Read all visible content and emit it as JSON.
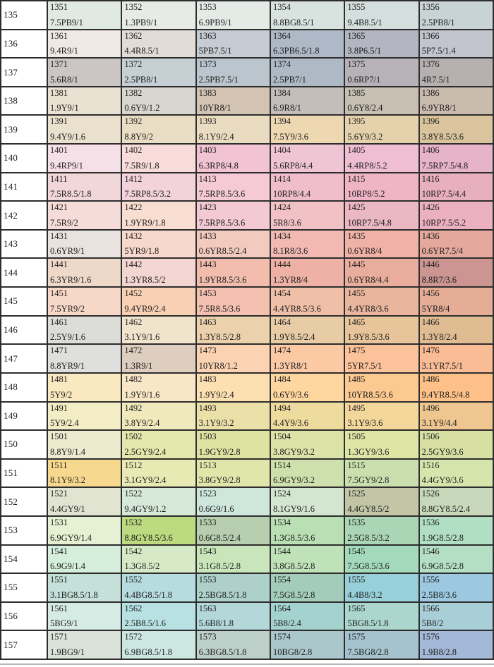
{
  "chart_data": {
    "type": "table",
    "title": "Munsell color chip chart, rows 135-157, chip codes with Munsell notations",
    "columns": [
      "row_label",
      "chip_1",
      "chip_2",
      "chip_3",
      "chip_4",
      "chip_5",
      "chip_6"
    ],
    "rows": [
      {
        "label": "135",
        "cells": [
          {
            "code": "1351",
            "notation": "7.5PB9/1",
            "color": "#e1e9e3"
          },
          {
            "code": "1352",
            "notation": "1.3PB9/1",
            "color": "#e6ece5"
          },
          {
            "code": "1353",
            "notation": "6.9PB9/1",
            "color": "#e4ebe7"
          },
          {
            "code": "1354",
            "notation": "8.8BG8.5/1",
            "color": "#d8e2df"
          },
          {
            "code": "1355",
            "notation": "9.4B8.5/1",
            "color": "#d4dedd"
          },
          {
            "code": "1356",
            "notation": "2.5PB8/1",
            "color": "#c8d3d6"
          }
        ]
      },
      {
        "label": "136",
        "cells": [
          {
            "code": "1361",
            "notation": "9.4R9/1",
            "color": "#efe9e5"
          },
          {
            "code": "1362",
            "notation": "4.4R8.5/1",
            "color": "#e2dcd7"
          },
          {
            "code": "1363",
            "notation": "5PB7.5/1",
            "color": "#c6ccd3"
          },
          {
            "code": "1364",
            "notation": "6.3PB6.5/1.8",
            "color": "#aeb9c7"
          },
          {
            "code": "1365",
            "notation": "3.8P6.5/1",
            "color": "#b3b5c0"
          },
          {
            "code": "1366",
            "notation": "5P7.5/1.4",
            "color": "#c3c5ce"
          }
        ]
      },
      {
        "label": "137",
        "cells": [
          {
            "code": "1371",
            "notation": "5.6R8/1",
            "color": "#cbc6c3"
          },
          {
            "code": "1372",
            "notation": "2.5PB8/1",
            "color": "#c6cfd4"
          },
          {
            "code": "1373",
            "notation": "2.5PB7.5/1",
            "color": "#bac5cd"
          },
          {
            "code": "1374",
            "notation": "2.5PB7/1",
            "color": "#adbac6"
          },
          {
            "code": "1375",
            "notation": "0.6RP7/1",
            "color": "#b6b2b8"
          },
          {
            "code": "1376",
            "notation": "4R7.5/1",
            "color": "#b7b0b0"
          }
        ]
      },
      {
        "label": "138",
        "cells": [
          {
            "code": "1381",
            "notation": "1.9Y9/1",
            "color": "#e9e1d1"
          },
          {
            "code": "1382",
            "notation": "0.6Y9/1.2",
            "color": "#d9d6cf"
          },
          {
            "code": "1383",
            "notation": "10YR8/1",
            "color": "#d2c3b3"
          },
          {
            "code": "1384",
            "notation": "6.9R8/1",
            "color": "#c4bebb"
          },
          {
            "code": "1385",
            "notation": "0.6Y8/2.4",
            "color": "#c7bfb1"
          },
          {
            "code": "1386",
            "notation": "6.9YR8/1",
            "color": "#cabbaf"
          }
        ]
      },
      {
        "label": "139",
        "cells": [
          {
            "code": "1391",
            "notation": "9.4Y9/1.6",
            "color": "#e9e0cd"
          },
          {
            "code": "1392",
            "notation": "8.8Y9/2",
            "color": "#e9ddc4"
          },
          {
            "code": "1393",
            "notation": "8.1Y9/2.4",
            "color": "#eadcc0"
          },
          {
            "code": "1394",
            "notation": "7.5Y9/3.6",
            "color": "#edd8b1"
          },
          {
            "code": "1395",
            "notation": "5.6Y9/3.2",
            "color": "#e5d2ad"
          },
          {
            "code": "1396",
            "notation": "3.8Y8.5/3.6",
            "color": "#d9c49d"
          }
        ]
      },
      {
        "label": "140",
        "cells": [
          {
            "code": "1401",
            "notation": "9.4RP9/1",
            "color": "#f6e0e7"
          },
          {
            "code": "1402",
            "notation": "7.5R9/1.8",
            "color": "#f8dcd9"
          },
          {
            "code": "1403",
            "notation": "6.3RP8/4.8",
            "color": "#f2c3d3"
          },
          {
            "code": "1404",
            "notation": "5.6RP8/4.4",
            "color": "#f0c5d3"
          },
          {
            "code": "1405",
            "notation": "4.4RP8/5.2",
            "color": "#efbed3"
          },
          {
            "code": "1406",
            "notation": "7.5RP7.5/4.8",
            "color": "#e7b3c8"
          }
        ]
      },
      {
        "label": "141",
        "cells": [
          {
            "code": "1411",
            "notation": "7.5R8.5/1.8",
            "color": "#f1d6da"
          },
          {
            "code": "1412",
            "notation": "7.5RP8.5/3.2",
            "color": "#f2d3db"
          },
          {
            "code": "1413",
            "notation": "7.5RP8.5/3.6",
            "color": "#f5c9d5"
          },
          {
            "code": "1414",
            "notation": "10RP8/4.4",
            "color": "#f0bdca"
          },
          {
            "code": "1415",
            "notation": "10RP8/5.2",
            "color": "#efb5c7"
          },
          {
            "code": "1416",
            "notation": "10RP7.5/4.4",
            "color": "#e8afbf"
          }
        ]
      },
      {
        "label": "142",
        "cells": [
          {
            "code": "1421",
            "notation": "7.5R9/2",
            "color": "#f6dcd9"
          },
          {
            "code": "1422",
            "notation": "1.9YR9/1.8",
            "color": "#f8ddd1"
          },
          {
            "code": "1423",
            "notation": "7.5RP8.5/3.6",
            "color": "#f3c9d3"
          },
          {
            "code": "1424",
            "notation": "5R8/3.6",
            "color": "#f1c1c5"
          },
          {
            "code": "1425",
            "notation": "10RP7.5/4.8",
            "color": "#eab7c3"
          },
          {
            "code": "1426",
            "notation": "10RP7.5/5.2",
            "color": "#ecb1c1"
          }
        ]
      },
      {
        "label": "143",
        "cells": [
          {
            "code": "1431",
            "notation": "0.6YR9/1",
            "color": "#eae2de"
          },
          {
            "code": "1432",
            "notation": "5YR9/1.8",
            "color": "#f8d8cc"
          },
          {
            "code": "1433",
            "notation": "0.6YR8.5/2.4",
            "color": "#f2cabe"
          },
          {
            "code": "1434",
            "notation": "8.1R8/3.6",
            "color": "#f2b9b3"
          },
          {
            "code": "1435",
            "notation": "0.6YR8/4",
            "color": "#f0b2a6"
          },
          {
            "code": "1436",
            "notation": "0.6YR7.5/4",
            "color": "#e4a89c"
          }
        ]
      },
      {
        "label": "144",
        "cells": [
          {
            "code": "1441",
            "notation": "6.3YR9/1.6",
            "color": "#eed9c9"
          },
          {
            "code": "1442",
            "notation": "1.3YR8.5/2",
            "color": "#f3d5d1"
          },
          {
            "code": "1443",
            "notation": "1.9YR8.5/3.6",
            "color": "#f2bdad"
          },
          {
            "code": "1444",
            "notation": "1.3YR8/4",
            "color": "#eeb1a5"
          },
          {
            "code": "1445",
            "notation": "0.6YR8/4.4",
            "color": "#e9ad9d"
          },
          {
            "code": "1446",
            "notation": "8.8R7/3.6",
            "color": "#cc9591"
          }
        ]
      },
      {
        "label": "145",
        "cells": [
          {
            "code": "1451",
            "notation": "7.5YR9/2",
            "color": "#f7d7c7"
          },
          {
            "code": "1452",
            "notation": "9.4YR9/2.4",
            "color": "#f8d1b5"
          },
          {
            "code": "1453",
            "notation": "7.5R8.5/3.6",
            "color": "#f4c1b1"
          },
          {
            "code": "1454",
            "notation": "4.4YR8.5/3.6",
            "color": "#f0bfa7"
          },
          {
            "code": "1455",
            "notation": "4.4YR8/3.6",
            "color": "#e9b59d"
          },
          {
            "code": "1456",
            "notation": "5YR8/4",
            "color": "#e5ad95"
          }
        ]
      },
      {
        "label": "146",
        "cells": [
          {
            "code": "1461",
            "notation": "2.5Y9/1.6",
            "color": "#dcdcd8"
          },
          {
            "code": "1462",
            "notation": "3.1Y9/1.6",
            "color": "#f0e4cc"
          },
          {
            "code": "1463",
            "notation": "1.3Y8.5/2.8",
            "color": "#ecd2ac"
          },
          {
            "code": "1464",
            "notation": "1.9Y8.5/2.4",
            "color": "#e8cca6"
          },
          {
            "code": "1465",
            "notation": "1.9Y8.5/3.6",
            "color": "#e8c49a"
          },
          {
            "code": "1466",
            "notation": "1.3Y8/2.4",
            "color": "#dfbc92"
          }
        ]
      },
      {
        "label": "147",
        "cells": [
          {
            "code": "1471",
            "notation": "8.8YR9/1",
            "color": "#dfdfdd"
          },
          {
            "code": "1472",
            "notation": "1.3R9/1",
            "color": "#ddcebf"
          },
          {
            "code": "1473",
            "notation": "10YR8/1.2",
            "color": "#fbd3b3"
          },
          {
            "code": "1474",
            "notation": "1.3YR8/1",
            "color": "#fcc9a5"
          },
          {
            "code": "1475",
            "notation": "5YR7.5/1",
            "color": "#fcc39b"
          },
          {
            "code": "1476",
            "notation": "3.1YR7.5/1",
            "color": "#f9bc95"
          }
        ]
      },
      {
        "label": "148",
        "cells": [
          {
            "code": "1481",
            "notation": "5Y9/2",
            "color": "#fae8c0"
          },
          {
            "code": "1482",
            "notation": "1.9Y9/1.6",
            "color": "#f8e6c6"
          },
          {
            "code": "1483",
            "notation": "1.9Y9/2.4",
            "color": "#fce0b2"
          },
          {
            "code": "1484",
            "notation": "0.6Y9/3.6",
            "color": "#fdd6a0"
          },
          {
            "code": "1485",
            "notation": "10YR8.5/3.6",
            "color": "#fcca90"
          },
          {
            "code": "1486",
            "notation": "9.4YR8.5/4.8",
            "color": "#fcc088"
          }
        ]
      },
      {
        "label": "149",
        "cells": [
          {
            "code": "1491",
            "notation": "5Y9/2.4",
            "color": "#f3edc6"
          },
          {
            "code": "1492",
            "notation": "3.8Y9/2.4",
            "color": "#efe9bb"
          },
          {
            "code": "1493",
            "notation": "3.1Y9/3.2",
            "color": "#ebe0a8"
          },
          {
            "code": "1494",
            "notation": "4.4Y9/3.6",
            "color": "#eedb9e"
          },
          {
            "code": "1495",
            "notation": "3.1Y9/3.6",
            "color": "#f2d69a"
          },
          {
            "code": "1496",
            "notation": "3.1Y9/4.4",
            "color": "#efc68f"
          }
        ]
      },
      {
        "label": "150",
        "cells": [
          {
            "code": "1501",
            "notation": "8.8Y9/1.4",
            "color": "#eeead0"
          },
          {
            "code": "1502",
            "notation": "2.5GY9/2.4",
            "color": "#e5e7ac"
          },
          {
            "code": "1503",
            "notation": "1.9GY9/2.8",
            "color": "#dfe3a2"
          },
          {
            "code": "1504",
            "notation": "3.8GY9/3.2",
            "color": "#dce3a6"
          },
          {
            "code": "1505",
            "notation": "1.3GY9/3.6",
            "color": "#dee6a6"
          },
          {
            "code": "1506",
            "notation": "2.5GY9/3.6",
            "color": "#d7e0a2"
          }
        ]
      },
      {
        "label": "151",
        "cells": [
          {
            "code": "1511",
            "notation": "8.1Y9/3.2",
            "color": "#f6d98e"
          },
          {
            "code": "1512",
            "notation": "3.1GY9/2.4",
            "color": "#e9e9b4"
          },
          {
            "code": "1513",
            "notation": "3.8GY9/2.8",
            "color": "#e0e5aa"
          },
          {
            "code": "1514",
            "notation": "6.9GY9/3.2",
            "color": "#cee1ac"
          },
          {
            "code": "1515",
            "notation": "7.5GY9/2.8",
            "color": "#cadfae"
          },
          {
            "code": "1516",
            "notation": "4.4GY9/3.6",
            "color": "#d6e5ac"
          }
        ]
      },
      {
        "label": "152",
        "cells": [
          {
            "code": "1521",
            "notation": "4.4GY9/1",
            "color": "#e0e4d0"
          },
          {
            "code": "1522",
            "notation": "9.4GY9/1.2",
            "color": "#d6e8d8"
          },
          {
            "code": "1523",
            "notation": "0.6G9/1.6",
            "color": "#cee6dc"
          },
          {
            "code": "1524",
            "notation": "8.1GY9/1.6",
            "color": "#d2e6d0"
          },
          {
            "code": "1525",
            "notation": "4.4GY8.5/2",
            "color": "#c2c6a6"
          },
          {
            "code": "1526",
            "notation": "8.8GY8.5/2.4",
            "color": "#c8d8ba"
          }
        ]
      },
      {
        "label": "153",
        "cells": [
          {
            "code": "1531",
            "notation": "6.9GY9/1.4",
            "color": "#e6f0d2"
          },
          {
            "code": "1532",
            "notation": "8.8GY8.5/3.6",
            "color": "#bcda7f"
          },
          {
            "code": "1533",
            "notation": "0.6G8.5/2.4",
            "color": "#b7cfae"
          },
          {
            "code": "1534",
            "notation": "1.3G8.5/3.6",
            "color": "#bbdfb4"
          },
          {
            "code": "1535",
            "notation": "2.5G8.5/3.2",
            "color": "#aad6b6"
          },
          {
            "code": "1536",
            "notation": "1.9G8.5/2.8",
            "color": "#b0dfc4"
          }
        ]
      },
      {
        "label": "154",
        "cells": [
          {
            "code": "1541",
            "notation": "6.9G9/1.4",
            "color": "#d6eedc"
          },
          {
            "code": "1542",
            "notation": "1.3G8.5/2",
            "color": "#d6eac8"
          },
          {
            "code": "1543",
            "notation": "3.1G8.5/2.8",
            "color": "#c8e6ba"
          },
          {
            "code": "1544",
            "notation": "3.8G8.5/2.8",
            "color": "#c0e2b8"
          },
          {
            "code": "1545",
            "notation": "7.5G8.5/3.6",
            "color": "#a4dabc"
          },
          {
            "code": "1546",
            "notation": "6.9G8.5/2.8",
            "color": "#b4dfc4"
          }
        ]
      },
      {
        "label": "155",
        "cells": [
          {
            "code": "1551",
            "notation": "3.1BG8.5/1.8",
            "color": "#c4e0d8"
          },
          {
            "code": "1552",
            "notation": "4.4BG8.5/1.8",
            "color": "#b6dce0"
          },
          {
            "code": "1553",
            "notation": "2.5BG8.5/1.8",
            "color": "#aed0ca"
          },
          {
            "code": "1554",
            "notation": "7.5G8.5/2.8",
            "color": "#a4ccba"
          },
          {
            "code": "1555",
            "notation": "4.4B8/3.2",
            "color": "#98d0da"
          },
          {
            "code": "1556",
            "notation": "2.5B8/3.6",
            "color": "#9cc8e0"
          }
        ]
      },
      {
        "label": "156",
        "cells": [
          {
            "code": "1561",
            "notation": "5BG9/1",
            "color": "#d6ebe3"
          },
          {
            "code": "1562",
            "notation": "2.5B8.5/1.6",
            "color": "#b8e1e3"
          },
          {
            "code": "1563",
            "notation": "5.6B8/1.8",
            "color": "#b4d8da"
          },
          {
            "code": "1564",
            "notation": "5B8/2.4",
            "color": "#a4d3cf"
          },
          {
            "code": "1565",
            "notation": "5BG8.5/1.8",
            "color": "#aad6ce"
          },
          {
            "code": "1566",
            "notation": "5B8/2",
            "color": "#a8cfd7"
          }
        ]
      },
      {
        "label": "157",
        "cells": [
          {
            "code": "1571",
            "notation": "1.9BG9/1",
            "color": "#dae3da"
          },
          {
            "code": "1572",
            "notation": "6.9BG8.5/1.8",
            "color": "#cce7e0"
          },
          {
            "code": "1573",
            "notation": "6.3BG8.5/1.8",
            "color": "#bccfc8"
          },
          {
            "code": "1574",
            "notation": "10BG8/2.8",
            "color": "#aac7cb"
          },
          {
            "code": "1575",
            "notation": "7.5BG8/2.8",
            "color": "#a4c3ce"
          },
          {
            "code": "1576",
            "notation": "1.9B8/2.8",
            "color": "#a4b8d8"
          }
        ]
      }
    ],
    "layout": {
      "grid": "on",
      "border_color": "#2d2d2d",
      "text_color": "#1f1f1f",
      "label_column_bg": "#ffffff"
    }
  }
}
